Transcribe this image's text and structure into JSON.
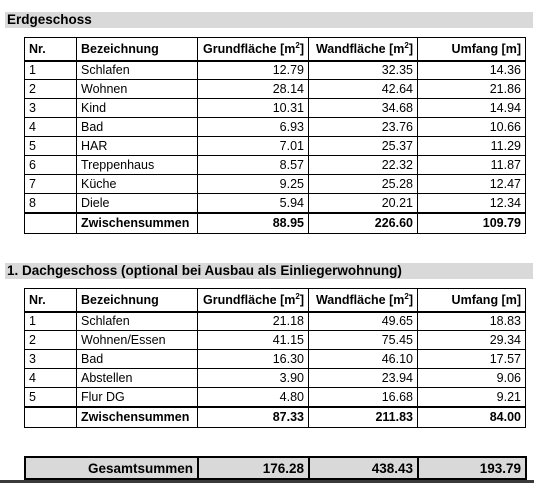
{
  "ground_floor": {
    "title": "Erdgeschoss",
    "headers": {
      "nr": "Nr.",
      "name": "Bezeichnung",
      "floor_area": "Grundfläche [m",
      "floor_area_exp": "2",
      "floor_area_end": "]",
      "wall_area": "Wandfläche [m",
      "wall_area_exp": "2",
      "wall_area_end": "]",
      "perimeter": "Umfang [m]"
    },
    "rows": [
      {
        "nr": "1",
        "name": "Schlafen",
        "floor": "12.79",
        "wall": "32.35",
        "perim": "14.36"
      },
      {
        "nr": "2",
        "name": "Wohnen",
        "floor": "28.14",
        "wall": "42.64",
        "perim": "21.86"
      },
      {
        "nr": "3",
        "name": "Kind",
        "floor": "10.31",
        "wall": "34.68",
        "perim": "14.94"
      },
      {
        "nr": "4",
        "name": "Bad",
        "floor": "6.93",
        "wall": "23.76",
        "perim": "10.66"
      },
      {
        "nr": "5",
        "name": "HAR",
        "floor": "7.01",
        "wall": "25.37",
        "perim": "11.29"
      },
      {
        "nr": "6",
        "name": "Treppenhaus",
        "floor": "8.57",
        "wall": "22.32",
        "perim": "11.87"
      },
      {
        "nr": "7",
        "name": "Küche",
        "floor": "9.25",
        "wall": "25.28",
        "perim": "12.47"
      },
      {
        "nr": "8",
        "name": "Diele",
        "floor": "5.94",
        "wall": "20.21",
        "perim": "12.34"
      }
    ],
    "subtotal": {
      "label": "Zwischensummen",
      "floor": "88.95",
      "wall": "226.60",
      "perim": "109.79"
    }
  },
  "attic": {
    "title": "1. Dachgeschoss (optional bei Ausbau als Einliegerwohnung)",
    "headers": {
      "nr": "Nr.",
      "name": "Bezeichnung",
      "floor_area": "Grundfläche [m",
      "floor_area_exp": "2",
      "floor_area_end": "]",
      "wall_area": "Wandfläche [m",
      "wall_area_exp": "2",
      "wall_area_end": "]",
      "perimeter": "Umfang [m]"
    },
    "rows": [
      {
        "nr": "1",
        "name": "Schlafen",
        "floor": "21.18",
        "wall": "49.65",
        "perim": "18.83"
      },
      {
        "nr": "2",
        "name": "Wohnen/Essen",
        "floor": "41.15",
        "wall": "75.45",
        "perim": "29.34"
      },
      {
        "nr": "3",
        "name": "Bad",
        "floor": "16.30",
        "wall": "46.10",
        "perim": "17.57"
      },
      {
        "nr": "4",
        "name": "Abstellen",
        "floor": "3.90",
        "wall": "23.94",
        "perim": "9.06"
      },
      {
        "nr": "5",
        "name": "Flur DG",
        "floor": "4.80",
        "wall": "16.68",
        "perim": "9.21"
      }
    ],
    "subtotal": {
      "label": "Zwischensummen",
      "floor": "87.33",
      "wall": "211.83",
      "perim": "84.00"
    }
  },
  "total": {
    "label": "Gesamtsummen",
    "floor": "176.28",
    "wall": "438.43",
    "perim": "193.79"
  }
}
